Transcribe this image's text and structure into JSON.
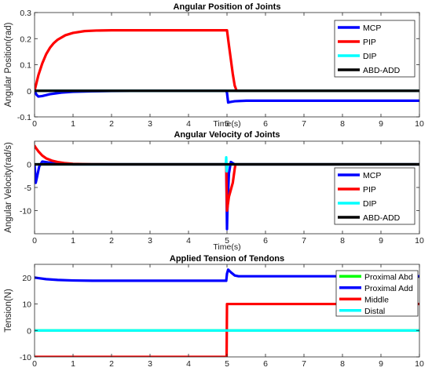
{
  "chart_data": [
    {
      "type": "line",
      "title": "Angular Position of Joints",
      "xlabel": "Time(s)",
      "ylabel": "Angular Position(rad)",
      "xlim": [
        0,
        10
      ],
      "ylim": [
        -0.1,
        0.3
      ],
      "xticks": [
        "0",
        "1",
        "2",
        "3",
        "4",
        "5",
        "6",
        "7",
        "8",
        "9",
        "10"
      ],
      "yticks": [
        "-0.1",
        "0",
        "0.1",
        "0.2",
        "0.3"
      ],
      "ytick_values": [
        -0.1,
        0,
        0.1,
        0.2,
        0.3
      ],
      "grid": false,
      "legend_position": "top-right",
      "series": [
        {
          "name": "MCP",
          "color": "#0000ff",
          "x": [
            0,
            0.05,
            0.1,
            0.2,
            0.4,
            0.7,
            1.0,
            1.5,
            2,
            3,
            4,
            4.98,
            5.0,
            5.03,
            5.08,
            5.2,
            5.5,
            6,
            7,
            8,
            9,
            10
          ],
          "y": [
            0,
            -0.015,
            -0.022,
            -0.02,
            -0.013,
            -0.007,
            -0.004,
            -0.002,
            -0.001,
            0,
            0,
            0,
            -0.008,
            -0.045,
            -0.043,
            -0.04,
            -0.038,
            -0.038,
            -0.038,
            -0.038,
            -0.038,
            -0.038
          ]
        },
        {
          "name": "PIP",
          "color": "#ff0000",
          "x": [
            0,
            0.1,
            0.2,
            0.3,
            0.4,
            0.5,
            0.6,
            0.8,
            1.0,
            1.3,
            1.6,
            2.0,
            3,
            4,
            5.0,
            5.05,
            5.1,
            5.15,
            5.2,
            5.25,
            5.5,
            6,
            7,
            8,
            9,
            10
          ],
          "y": [
            0,
            0.06,
            0.105,
            0.14,
            0.165,
            0.183,
            0.196,
            0.213,
            0.222,
            0.229,
            0.231,
            0.232,
            0.232,
            0.232,
            0.232,
            0.175,
            0.12,
            0.065,
            0.02,
            0,
            0,
            0,
            0,
            0,
            0,
            0
          ]
        },
        {
          "name": "DIP",
          "color": "#00ffff",
          "x": [
            0,
            10
          ],
          "y": [
            0,
            0
          ]
        },
        {
          "name": "ABD-ADD",
          "color": "#000000",
          "x": [
            0,
            10
          ],
          "y": [
            0,
            0
          ]
        }
      ]
    },
    {
      "type": "line",
      "title": "Angular Velocity of Joints",
      "xlabel": "Time(s)",
      "ylabel": "Angular Velocity(rad/s)",
      "xlim": [
        0,
        10
      ],
      "ylim": [
        -15,
        5
      ],
      "xticks": [
        "0",
        "1",
        "2",
        "3",
        "4",
        "5",
        "6",
        "7",
        "8",
        "9",
        "10"
      ],
      "yticks": [
        "-10",
        "-5",
        "0"
      ],
      "ytick_values": [
        -10,
        -5,
        0
      ],
      "grid": false,
      "legend_position": "bottom-right",
      "series": [
        {
          "name": "MCP",
          "color": "#0000ff",
          "x": [
            0,
            0.03,
            0.07,
            0.12,
            0.2,
            0.35,
            0.6,
            1.0,
            2,
            4,
            4.98,
            5.0,
            5.01,
            5.05,
            5.1,
            5.2,
            6,
            10
          ],
          "y": [
            0,
            -4,
            -2.5,
            -0.5,
            0.6,
            0.4,
            0.2,
            0,
            0,
            0,
            0,
            -14,
            -10,
            -2,
            0.5,
            0,
            0,
            0
          ]
        },
        {
          "name": "PIP",
          "color": "#ff0000",
          "x": [
            0,
            0.03,
            0.1,
            0.2,
            0.3,
            0.45,
            0.6,
            0.8,
            1.0,
            1.5,
            2,
            4.98,
            5.0,
            5.05,
            5.1,
            5.15,
            5.2,
            5.22,
            5.3,
            10
          ],
          "y": [
            4,
            3.6,
            2.8,
            1.9,
            1.3,
            0.8,
            0.5,
            0.25,
            0.12,
            0.03,
            0,
            0,
            -10,
            -7,
            -5.5,
            -4,
            -1,
            0,
            0,
            0
          ]
        },
        {
          "name": "DIP",
          "color": "#00ffff",
          "x": [
            0,
            4.97,
            4.98,
            4.99,
            5.01,
            10
          ],
          "y": [
            0,
            0,
            1.5,
            -1.5,
            0,
            0
          ]
        },
        {
          "name": "ABD-ADD",
          "color": "#000000",
          "x": [
            0,
            10
          ],
          "y": [
            0,
            0
          ]
        }
      ]
    },
    {
      "type": "line",
      "title": "Applied Tension of Tendons",
      "xlabel": "",
      "ylabel": "Tension(N)",
      "xlim": [
        0,
        10
      ],
      "ylim": [
        -10,
        25
      ],
      "xticks": [
        "0",
        "1",
        "2",
        "3",
        "4",
        "5",
        "6",
        "7",
        "8",
        "9",
        "10"
      ],
      "yticks": [
        "-10",
        "0",
        "10",
        "20"
      ],
      "ytick_values": [
        -10,
        0,
        10,
        20
      ],
      "grid": false,
      "legend_position": "top-right",
      "series": [
        {
          "name": "Proximal Abd",
          "color": "#00ff00",
          "x": [
            0,
            10
          ],
          "y": [
            0,
            0
          ]
        },
        {
          "name": "Proximal Add",
          "color": "#0000ff",
          "x": [
            0,
            0.1,
            0.3,
            0.6,
            1.0,
            1.5,
            2,
            3,
            4,
            4.98,
            5.0,
            5.03,
            5.1,
            5.2,
            5.3,
            6,
            7,
            8,
            9,
            10
          ],
          "y": [
            20,
            19.8,
            19.4,
            19.1,
            18.9,
            18.8,
            18.8,
            18.8,
            18.8,
            18.8,
            21.5,
            23,
            22,
            20.8,
            20.5,
            20.5,
            20.5,
            20.5,
            20.5,
            20.5
          ]
        },
        {
          "name": "Middle",
          "color": "#ff0000",
          "x": [
            0,
            4.99,
            5.0,
            10
          ],
          "y": [
            -10,
            -10,
            10,
            10
          ]
        },
        {
          "name": "Distal",
          "color": "#00ffff",
          "x": [
            0,
            10
          ],
          "y": [
            0,
            0
          ]
        }
      ]
    }
  ]
}
